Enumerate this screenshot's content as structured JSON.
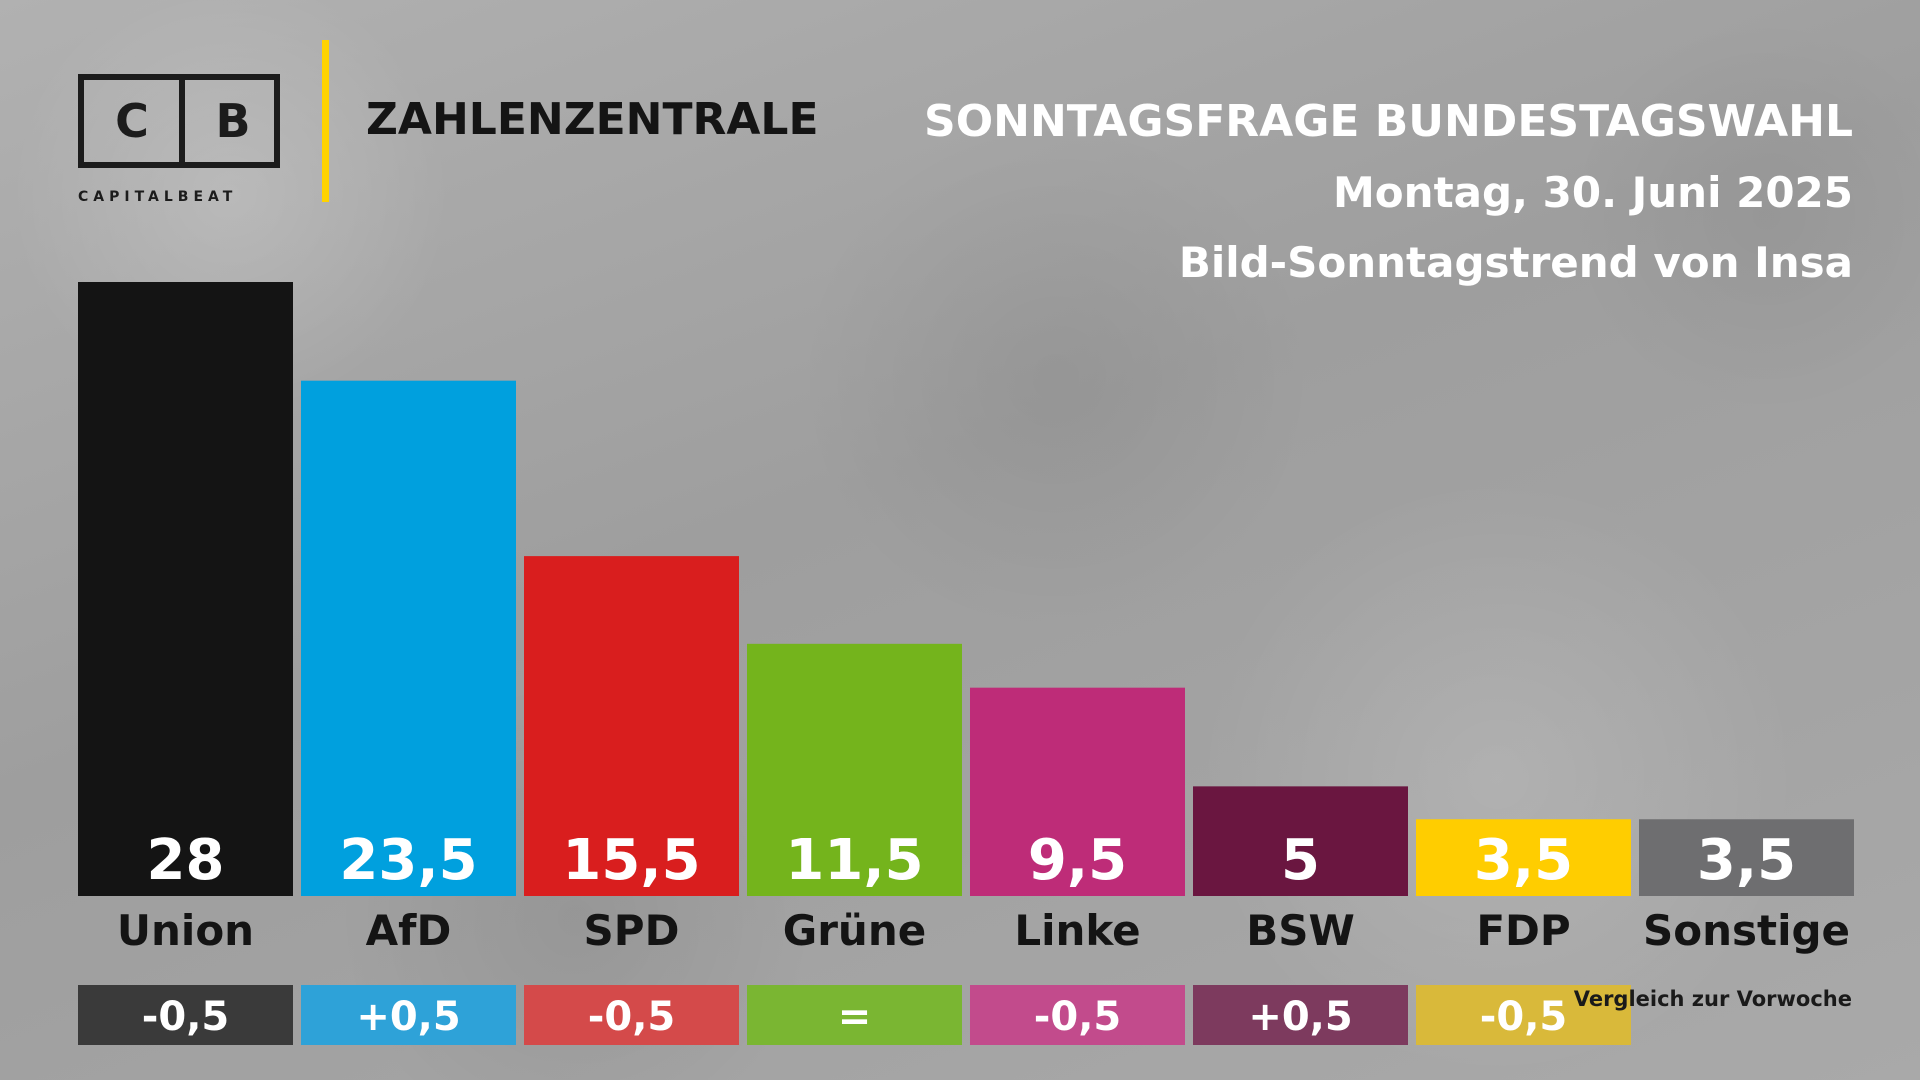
{
  "brand": {
    "logo_letter_left": "C",
    "logo_letter_right": "B",
    "logo_sub": "CAPITALBEAT",
    "name": "ZAHLENZENTRALE",
    "accent_color": "#ffd300"
  },
  "header": {
    "title": "SONNTAGSFRAGE BUNDESTAGSWAHL",
    "date": "Montag, 30. Juni 2025",
    "source": "Bild-Sonntagstrend von Insa"
  },
  "chart_data": {
    "type": "bar",
    "categories": [
      "Union",
      "AfD",
      "SPD",
      "Grüne",
      "Linke",
      "BSW",
      "FDP",
      "Sonstige"
    ],
    "values": [
      28,
      23.5,
      15.5,
      11.5,
      9.5,
      5,
      3.5,
      3.5
    ],
    "value_labels": [
      "28",
      "23,5",
      "15,5",
      "11,5",
      "9,5",
      "5",
      "3,5",
      "3,5"
    ],
    "changes": [
      "-0,5",
      "+0,5",
      "-0,5",
      "=",
      "-0,5",
      "+0,5",
      "-0,5",
      ""
    ],
    "change_note": "Vergleich zur Vorwoche",
    "colors": [
      "#141414",
      "#00a0de",
      "#d91e1e",
      "#74b41c",
      "#be2c78",
      "#6a1640",
      "#ffcd00",
      "#6e6e70"
    ],
    "change_colors": [
      "#3a3a3a",
      "#2ea2d8",
      "#d44a4a",
      "#7ab632",
      "#c24b8c",
      "#7d3a5e",
      "#d9b93a",
      ""
    ],
    "value_label_colors": [
      "#ffffff",
      "#ffffff",
      "#ffffff",
      "#ffffff",
      "#ffffff",
      "#ffffff",
      "#ffffff",
      "#ffffff"
    ],
    "label_color": "#141414",
    "ylim": [
      0,
      28
    ]
  }
}
